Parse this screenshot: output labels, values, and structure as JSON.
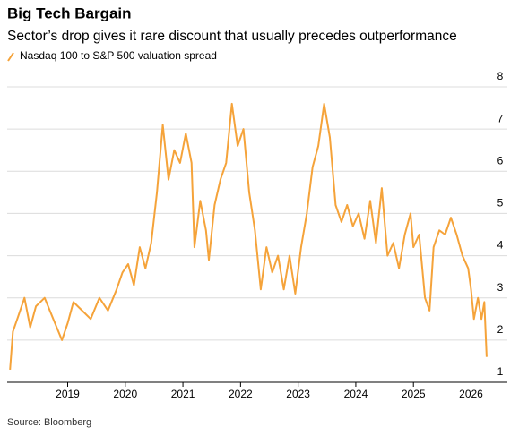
{
  "chart_data": {
    "type": "line",
    "title": "Big Tech Bargain",
    "subtitle": "Sector’s drop gives it rare discount that usually precedes outperformance",
    "source": "Source: Bloomberg",
    "legend": "top-left",
    "x": [
      2018.0,
      2018.05,
      2018.15,
      2018.25,
      2018.35,
      2018.45,
      2018.6,
      2018.75,
      2018.9,
      2019.0,
      2019.1,
      2019.25,
      2019.4,
      2019.55,
      2019.7,
      2019.85,
      2019.95,
      2020.05,
      2020.15,
      2020.25,
      2020.35,
      2020.45,
      2020.55,
      2020.65,
      2020.75,
      2020.85,
      2020.95,
      2021.05,
      2021.15,
      2021.2,
      2021.3,
      2021.4,
      2021.45,
      2021.55,
      2021.65,
      2021.75,
      2021.85,
      2021.95,
      2022.05,
      2022.15,
      2022.25,
      2022.35,
      2022.45,
      2022.55,
      2022.65,
      2022.75,
      2022.85,
      2022.95,
      2023.05,
      2023.15,
      2023.25,
      2023.35,
      2023.45,
      2023.55,
      2023.65,
      2023.75,
      2023.85,
      2023.95,
      2024.05,
      2024.15,
      2024.25,
      2024.35,
      2024.45,
      2024.55,
      2024.65,
      2024.75,
      2024.85,
      2024.95,
      2025.0,
      2025.1,
      2025.2,
      2025.28,
      2025.35,
      2025.45,
      2025.55,
      2025.65,
      2025.75,
      2025.85,
      2025.95,
      2026.0,
      2026.05,
      2026.12,
      2026.18,
      2026.23,
      2026.27
    ],
    "series": [
      {
        "name": "Nasdaq 100 to S&P 500 valuation spread",
        "color": "#f5a33a",
        "values": [
          1.3,
          2.2,
          2.6,
          3.0,
          2.3,
          2.8,
          3.0,
          2.5,
          2.0,
          2.4,
          2.9,
          2.7,
          2.5,
          3.0,
          2.7,
          3.2,
          3.6,
          3.8,
          3.3,
          4.2,
          3.7,
          4.3,
          5.5,
          7.1,
          5.8,
          6.5,
          6.2,
          6.9,
          6.2,
          4.2,
          5.3,
          4.6,
          3.9,
          5.2,
          5.8,
          6.2,
          7.6,
          6.6,
          7.0,
          5.5,
          4.6,
          3.2,
          4.2,
          3.6,
          4.0,
          3.2,
          4.0,
          3.1,
          4.2,
          5.0,
          6.1,
          6.6,
          7.6,
          6.8,
          5.2,
          4.8,
          5.2,
          4.7,
          5.0,
          4.4,
          5.3,
          4.3,
          5.6,
          4.0,
          4.3,
          3.7,
          4.5,
          5.0,
          4.2,
          4.5,
          3.0,
          2.7,
          4.2,
          4.6,
          4.5,
          4.9,
          4.5,
          4.0,
          3.7,
          3.2,
          2.5,
          3.0,
          2.5,
          2.9,
          1.6
        ]
      }
    ],
    "xlim": [
      2017.95,
      2026.35
    ],
    "xticks": [
      2019,
      2020,
      2021,
      2022,
      2023,
      2024,
      2025,
      2026
    ],
    "ylim": [
      1,
      8
    ],
    "yticks": [
      1,
      2,
      3,
      4,
      5,
      6,
      7,
      8
    ],
    "grid": true
  }
}
